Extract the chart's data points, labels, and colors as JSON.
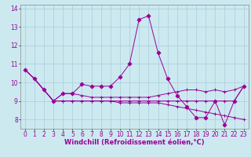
{
  "background_color": "#cce9f0",
  "grid_color": "#aaccdd",
  "line_color": "#990099",
  "marker_color": "#990099",
  "xlabel": "Windchill (Refroidissement éolien,°C)",
  "xlabel_fontsize": 6.0,
  "tick_fontsize": 5.5,
  "ylim": [
    7.5,
    14.2
  ],
  "xlim": [
    -0.5,
    23.5
  ],
  "yticks": [
    8,
    9,
    10,
    11,
    12,
    13,
    14
  ],
  "xticks": [
    0,
    1,
    2,
    3,
    4,
    5,
    6,
    7,
    8,
    9,
    10,
    11,
    12,
    13,
    14,
    15,
    16,
    17,
    18,
    19,
    20,
    21,
    22,
    23
  ],
  "series": [
    [
      10.7,
      10.2,
      9.6,
      9.0,
      9.4,
      9.4,
      9.9,
      9.8,
      9.8,
      9.8,
      10.3,
      11.0,
      13.4,
      13.6,
      11.6,
      10.2,
      9.3,
      8.7,
      8.1,
      8.1,
      9.0,
      7.7,
      9.0,
      9.8
    ],
    [
      10.7,
      10.2,
      9.6,
      9.0,
      9.4,
      9.4,
      9.3,
      9.2,
      9.2,
      9.2,
      9.2,
      9.2,
      9.2,
      9.2,
      9.3,
      9.4,
      9.5,
      9.6,
      9.6,
      9.5,
      9.6,
      9.5,
      9.6,
      9.8
    ],
    [
      10.7,
      10.2,
      9.6,
      9.0,
      9.0,
      9.0,
      9.0,
      9.0,
      9.0,
      9.0,
      8.9,
      8.9,
      8.9,
      8.9,
      8.9,
      8.8,
      8.7,
      8.6,
      8.5,
      8.4,
      8.3,
      8.2,
      8.1,
      8.0
    ],
    [
      10.7,
      10.2,
      9.6,
      9.0,
      9.0,
      9.0,
      9.0,
      9.0,
      9.0,
      9.0,
      9.0,
      9.0,
      9.0,
      9.0,
      9.0,
      9.0,
      9.0,
      9.0,
      9.0,
      9.0,
      9.0,
      9.0,
      9.0,
      9.8
    ]
  ]
}
